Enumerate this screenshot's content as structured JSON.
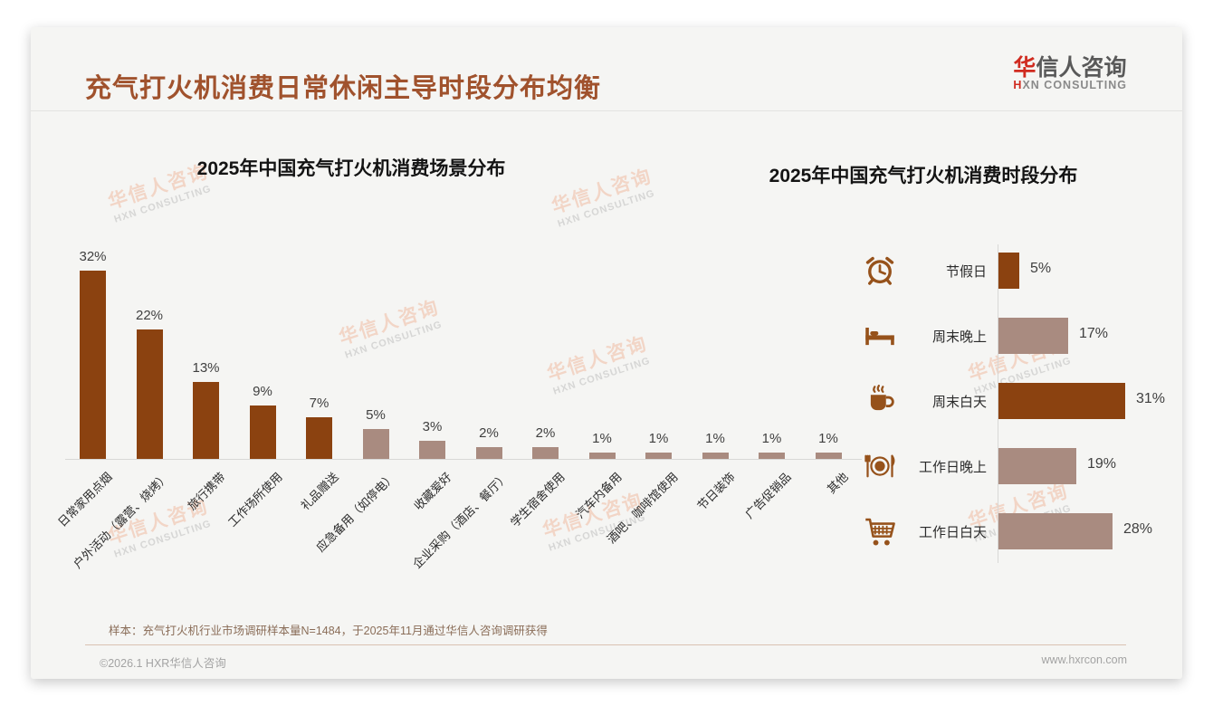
{
  "header": {
    "title": "充气打火机消费日常休闲主导时段分布均衡",
    "logo": {
      "cn_accent": "华",
      "cn_rest": "信人咨询",
      "en_accent": "H",
      "en_rest": "XN CONSULTING"
    }
  },
  "watermark": {
    "cn": "华信人咨询",
    "en": "HXN CONSULTING"
  },
  "colors": {
    "primary_brown": "#8B4210",
    "secondary_mauve": "#A98B80",
    "icon_brown": "#96521b",
    "title_brown": "#A0522D",
    "logo_red": "#D02B20"
  },
  "chart_data": [
    {
      "type": "bar",
      "orientation": "vertical",
      "title": "2025年中国充气打火机消费场景分布",
      "unit": "%",
      "categories": [
        "日常家用点烟",
        "户外活动（露营、烧烤）",
        "旅行携带",
        "工作场所使用",
        "礼品赠送",
        "应急备用（如停电）",
        "收藏爱好",
        "企业采购（酒店、餐厅）",
        "学生宿舍使用",
        "汽车内备用",
        "酒吧、咖啡馆使用",
        "节日装饰",
        "广告促销品",
        "其他"
      ],
      "values": [
        32,
        22,
        13,
        9,
        7,
        5,
        3,
        2,
        2,
        1,
        1,
        1,
        1,
        1
      ],
      "data_labels": [
        "32%",
        "22%",
        "13%",
        "9%",
        "7%",
        "5%",
        "3%",
        "2%",
        "2%",
        "1%",
        "1%",
        "1%",
        "1%",
        "1%"
      ],
      "bar_palette": [
        "primary",
        "primary",
        "primary",
        "primary",
        "primary",
        "secondary",
        "secondary",
        "secondary",
        "secondary",
        "secondary",
        "secondary",
        "secondary",
        "secondary",
        "secondary"
      ],
      "xlabel_rotation": 45,
      "ylim": [
        0,
        34
      ],
      "grid": false,
      "legend": false
    },
    {
      "type": "bar",
      "orientation": "horizontal",
      "title": "2025年中国充气打火机消费时段分布",
      "unit": "%",
      "categories": [
        "节假日",
        "周末晚上",
        "周末白天",
        "工作日晚上",
        "工作日白天"
      ],
      "values": [
        5,
        17,
        31,
        19,
        28
      ],
      "data_labels": [
        "5%",
        "17%",
        "31%",
        "19%",
        "28%"
      ],
      "bar_palette": [
        "primary",
        "secondary",
        "primary",
        "secondary",
        "secondary"
      ],
      "icons": [
        "alarm-clock-icon",
        "bed-icon",
        "coffee-icon",
        "dining-icon",
        "shopping-cart-icon"
      ],
      "xlim": [
        0,
        33
      ],
      "grid": false,
      "legend": false
    }
  ],
  "footnote": "样本：充气打火机行业市场调研样本量N=1484，于2025年11月通过华信人咨询调研获得",
  "footer": {
    "left": "©2026.1 HXR华信人咨询",
    "right": "www.hxrcon.com"
  }
}
